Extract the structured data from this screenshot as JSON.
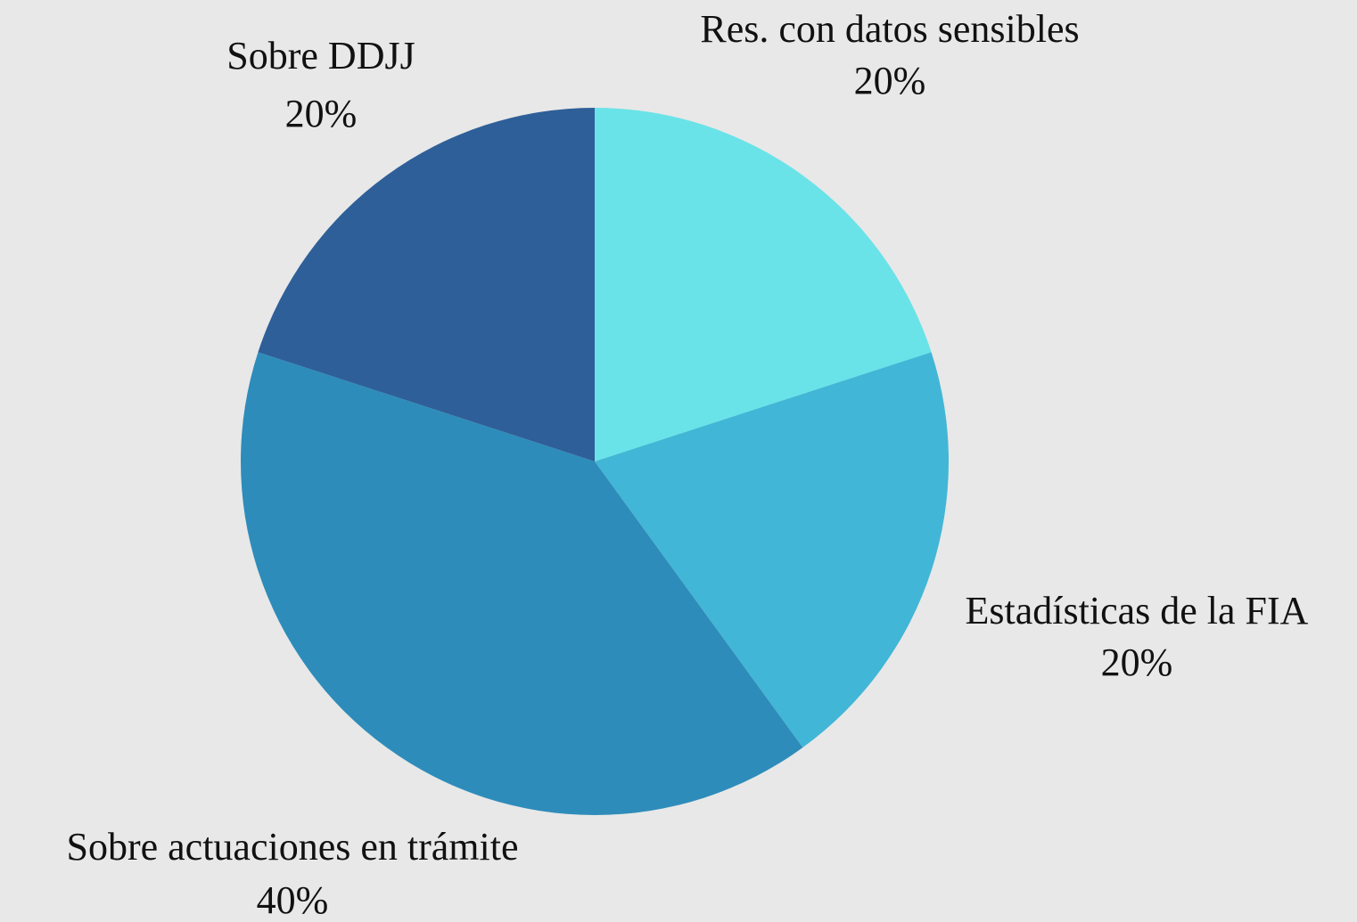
{
  "chart_data": {
    "type": "pie",
    "categories": [
      "Res. con datos sensibles",
      "Estadísticas de la FIA",
      "Sobre actuaciones en trámite",
      "Sobre DDJJ"
    ],
    "values": [
      20,
      20,
      40,
      20
    ],
    "value_labels": [
      "20%",
      "20%",
      "40%",
      "20%"
    ],
    "colors": [
      "#69e3e8",
      "#42b6d6",
      "#2e8cba",
      "#2e5f98"
    ]
  }
}
